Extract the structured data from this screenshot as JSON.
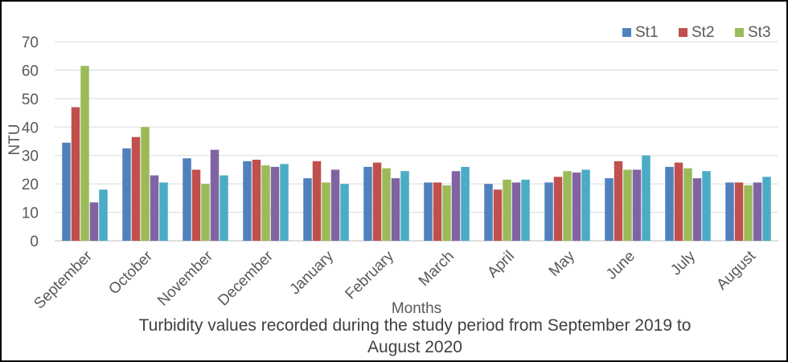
{
  "chart_data": {
    "type": "bar",
    "title": "",
    "caption_lines": [
      "Turbidity values recorded during the study period from September  2019 to",
      "August 2020"
    ],
    "xlabel": "Months",
    "ylabel": "NTU",
    "ylim": [
      0,
      70
    ],
    "yticks": [
      0,
      10,
      20,
      30,
      40,
      50,
      60,
      70
    ],
    "grid": true,
    "legend_position": "top-right",
    "categories": [
      "September",
      "October",
      "November",
      "December",
      "January",
      "February",
      "March",
      "April",
      "May",
      "June",
      "July",
      "August"
    ],
    "series": [
      {
        "name": "St1",
        "color": "#4f81bd",
        "values": [
          34.5,
          32.5,
          29,
          28,
          22,
          26,
          20.5,
          20,
          20.5,
          22,
          26,
          20.5
        ]
      },
      {
        "name": "St2",
        "color": "#c0504d",
        "values": [
          47,
          36.5,
          25,
          28.5,
          28,
          27.5,
          20.5,
          18,
          22.5,
          28,
          27.5,
          20.5
        ]
      },
      {
        "name": "St3",
        "color": "#9bbb59",
        "values": [
          61.5,
          40,
          20,
          26.5,
          20.5,
          25.5,
          19.5,
          21.5,
          24.5,
          25,
          25.5,
          19.5
        ]
      },
      {
        "name": "",
        "color": "#8064a2",
        "values": [
          13.5,
          23,
          32,
          26,
          25,
          22,
          24.5,
          20.5,
          24,
          25,
          22,
          20.5
        ]
      },
      {
        "name": "",
        "color": "#4bacc6",
        "values": [
          18,
          20.5,
          23,
          27,
          20,
          24.5,
          26,
          21.5,
          25,
          30,
          24.5,
          22.5
        ]
      }
    ]
  }
}
